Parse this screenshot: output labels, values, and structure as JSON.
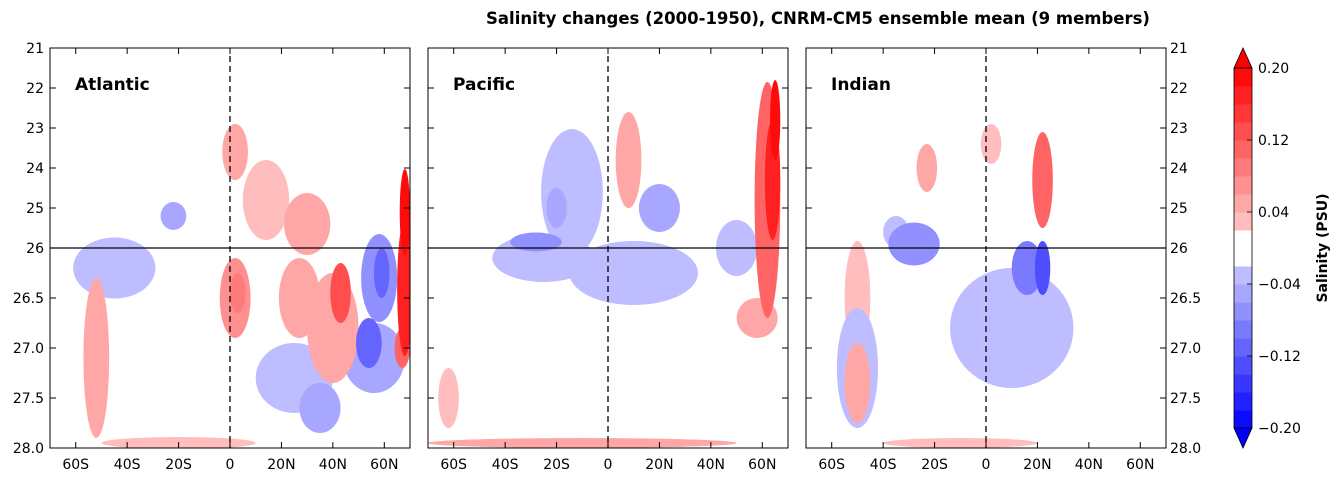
{
  "chart_data": {
    "type": "heatmap",
    "title": "Salinity changes (2000-1950), CNRM-CM5 ensemble mean (9 members)",
    "xlabel": "",
    "ylabel": "",
    "x_ticks": [
      {
        "label": "60S",
        "value": -60
      },
      {
        "label": "40S",
        "value": -40
      },
      {
        "label": "20S",
        "value": -20
      },
      {
        "label": "0",
        "value": 0
      },
      {
        "label": "20N",
        "value": 20
      },
      {
        "label": "40N",
        "value": 40
      },
      {
        "label": "60N",
        "value": 60
      }
    ],
    "x_range": [
      -70,
      70
    ],
    "y_ticks": [
      {
        "label": "21",
        "value": 21
      },
      {
        "label": "22",
        "value": 22
      },
      {
        "label": "23",
        "value": 23
      },
      {
        "label": "24",
        "value": 24
      },
      {
        "label": "25",
        "value": 25
      },
      {
        "label": "26",
        "value": 26
      },
      {
        "label": "26.5",
        "value": 26.5
      },
      {
        "label": "27.0",
        "value": 27.0
      },
      {
        "label": "27.5",
        "value": 27.5
      },
      {
        "label": "28.0",
        "value": 28.0
      }
    ],
    "y_range": [
      21,
      28
    ],
    "y_axis_note": "upper section 21-26 linear, lower section 26-28 linear (split axis at sigma 26)",
    "panels": [
      {
        "name": "Atlantic",
        "blobs": [
          {
            "lat": 2,
            "sig": 23.6,
            "rx": 5,
            "ry": 0.7,
            "v": 0.04
          },
          {
            "lat": 14,
            "sig": 24.8,
            "rx": 9,
            "ry": 1.0,
            "v": 0.03
          },
          {
            "lat": 30,
            "sig": 25.4,
            "rx": 9,
            "ry": 0.7,
            "v": 0.05
          },
          {
            "lat": 2,
            "sig": 26.5,
            "rx": 6,
            "ry": 0.4,
            "v": 0.06
          },
          {
            "lat": 3,
            "sig": 26.45,
            "rx": 3,
            "ry": 0.2,
            "v": 0.09
          },
          {
            "lat": 27,
            "sig": 26.5,
            "rx": 8,
            "ry": 0.4,
            "v": 0.04
          },
          {
            "lat": 43,
            "sig": 26.45,
            "rx": 4,
            "ry": 0.3,
            "v": 0.13
          },
          {
            "lat": 40,
            "sig": 26.8,
            "rx": 10,
            "ry": 0.55,
            "v": 0.05
          },
          {
            "lat": 68,
            "sig": 26.4,
            "rx": 3,
            "ry": 0.8,
            "v": 0.16
          },
          {
            "lat": 68,
            "sig": 25.1,
            "rx": 2,
            "ry": 1.0,
            "v": 0.18
          },
          {
            "lat": 67,
            "sig": 27.0,
            "rx": 3,
            "ry": 0.2,
            "v": 0.1
          },
          {
            "lat": -52,
            "sig": 27.1,
            "rx": 5,
            "ry": 0.8,
            "v": 0.04
          },
          {
            "lat": -22,
            "sig": 25.2,
            "rx": 5,
            "ry": 0.35,
            "v": -0.04
          },
          {
            "lat": -45,
            "sig": 26.2,
            "rx": 16,
            "ry": 0.35,
            "v": -0.03
          },
          {
            "lat": 58,
            "sig": 26.3,
            "rx": 7,
            "ry": 0.5,
            "v": -0.06
          },
          {
            "lat": 59,
            "sig": 26.25,
            "rx": 3,
            "ry": 0.25,
            "v": -0.11
          },
          {
            "lat": 54,
            "sig": 26.95,
            "rx": 5,
            "ry": 0.25,
            "v": -0.1
          },
          {
            "lat": 56,
            "sig": 27.1,
            "rx": 12,
            "ry": 0.35,
            "v": -0.04
          },
          {
            "lat": 25,
            "sig": 27.3,
            "rx": 15,
            "ry": 0.35,
            "v": -0.03
          },
          {
            "lat": 35,
            "sig": 27.6,
            "rx": 8,
            "ry": 0.25,
            "v": -0.05
          },
          {
            "lat": -20,
            "sig": 27.95,
            "rx": 30,
            "ry": 0.06,
            "v": 0.03
          }
        ]
      },
      {
        "name": "Pacific",
        "blobs": [
          {
            "lat": 8,
            "sig": 23.8,
            "rx": 5,
            "ry": 1.2,
            "v": 0.04
          },
          {
            "lat": 62,
            "sig": 24.8,
            "rx": 5,
            "ry": 2.2,
            "v": 0.1
          },
          {
            "lat": 64,
            "sig": 24.3,
            "rx": 3,
            "ry": 1.5,
            "v": 0.17
          },
          {
            "lat": 65,
            "sig": 22.8,
            "rx": 2,
            "ry": 1.0,
            "v": 0.19
          },
          {
            "lat": 58,
            "sig": 26.7,
            "rx": 8,
            "ry": 0.2,
            "v": 0.04
          },
          {
            "lat": -14,
            "sig": 24.6,
            "rx": 12,
            "ry": 1.5,
            "v": -0.03
          },
          {
            "lat": -20,
            "sig": 25.0,
            "rx": 4,
            "ry": 0.5,
            "v": -0.05
          },
          {
            "lat": 20,
            "sig": 25.0,
            "rx": 8,
            "ry": 0.6,
            "v": -0.04
          },
          {
            "lat": -25,
            "sig": 26.1,
            "rx": 20,
            "ry": 0.3,
            "v": -0.03
          },
          {
            "lat": -28,
            "sig": 25.85,
            "rx": 10,
            "ry": 0.2,
            "v": -0.06
          },
          {
            "lat": 10,
            "sig": 26.25,
            "rx": 25,
            "ry": 0.35,
            "v": -0.03
          },
          {
            "lat": 50,
            "sig": 26.0,
            "rx": 8,
            "ry": 0.4,
            "v": -0.03
          },
          {
            "lat": -62,
            "sig": 27.5,
            "rx": 4,
            "ry": 0.3,
            "v": 0.03
          },
          {
            "lat": -10,
            "sig": 27.95,
            "rx": 60,
            "ry": 0.05,
            "v": 0.04
          }
        ]
      },
      {
        "name": "Indian",
        "blobs": [
          {
            "lat": 2,
            "sig": 23.4,
            "rx": 4,
            "ry": 0.5,
            "v": 0.03
          },
          {
            "lat": -23,
            "sig": 24.0,
            "rx": 4,
            "ry": 0.6,
            "v": 0.05
          },
          {
            "lat": 22,
            "sig": 24.3,
            "rx": 4,
            "ry": 1.2,
            "v": 0.1
          },
          {
            "lat": -50,
            "sig": 26.5,
            "rx": 5,
            "ry": 0.6,
            "v": 0.03
          },
          {
            "lat": -50,
            "sig": 27.35,
            "rx": 5,
            "ry": 0.4,
            "v": 0.04
          },
          {
            "lat": -28,
            "sig": 25.9,
            "rx": 10,
            "ry": 0.35,
            "v": -0.06
          },
          {
            "lat": -35,
            "sig": 25.6,
            "rx": 5,
            "ry": 0.4,
            "v": -0.03
          },
          {
            "lat": 10,
            "sig": 26.8,
            "rx": 24,
            "ry": 0.6,
            "v": -0.03
          },
          {
            "lat": 16,
            "sig": 26.2,
            "rx": 6,
            "ry": 0.3,
            "v": -0.08
          },
          {
            "lat": 22,
            "sig": 26.2,
            "rx": 3,
            "ry": 0.3,
            "v": -0.12
          },
          {
            "lat": -50,
            "sig": 27.2,
            "rx": 8,
            "ry": 0.6,
            "v": -0.03
          },
          {
            "lat": -10,
            "sig": 27.95,
            "rx": 30,
            "ry": 0.05,
            "v": 0.03
          }
        ]
      }
    ],
    "colorbar": {
      "label": "Salinity (PSU)",
      "levels": [
        -0.2,
        -0.18,
        -0.16,
        -0.14,
        -0.12,
        -0.1,
        -0.08,
        -0.06,
        -0.04,
        -0.02,
        0.02,
        0.04,
        0.06,
        0.08,
        0.1,
        0.12,
        0.14,
        0.16,
        0.18,
        0.2
      ],
      "tick_labels": [
        "0.20",
        "0.12",
        "0.04",
        "−0.04",
        "−0.12",
        "−0.20"
      ],
      "tick_values": [
        0.2,
        0.12,
        0.04,
        -0.04,
        -0.12,
        -0.2
      ],
      "neg_max_color": "#0000ff",
      "pos_max_color": "#ff0000",
      "neutral_color": "#ffffff"
    },
    "reference_lines": {
      "vertical_dashed_at_lat": 0,
      "horizontal_solid_at_sigma": 26
    }
  }
}
